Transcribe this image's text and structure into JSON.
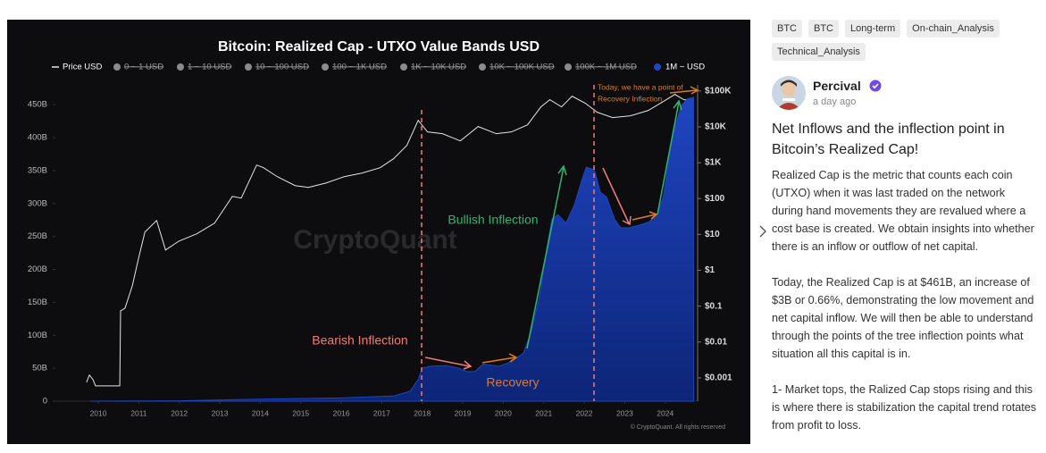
{
  "tags": [
    "BTC",
    "BTC",
    "Long-term",
    "On-chain_Analysis",
    "Technical_Analysis"
  ],
  "author": {
    "name": "Percival",
    "time": "a day ago"
  },
  "post": {
    "title": "Net Inflows and the inflection point in Bitcoin’s Realized Cap!",
    "paragraphs": [
      "Realized Cap is the metric that counts each coin (UTXO) when it was last traded on the network during hand movements they are revalued where a cost base is created. We obtain insights into whether there is an inflow or outflow of net capital.",
      "Today, the Realized Cap is at $461B, an increase of $3B or 0.66%, demonstrating the low movement and net capital inflow. We will then be able to understand through the points of the tree inflection points what situation all this capital is in.",
      "1- Market tops, the Ralized Cap stops rising and this is where there is stabilization the capital trend rotates from profit to loss."
    ]
  },
  "chart_data": {
    "type": "area",
    "title": "Bitcoin: Realized Cap - UTXO Value Bands USD",
    "watermark": "CryptoQuant",
    "credit": "© CryptoQuant. All rights reserved",
    "annotations": [
      "Bearish Inflection",
      "Recovery",
      "Bullish Inflection",
      "Today, we have a point of",
      "Recovery Inflection"
    ],
    "hidden_legend": [
      "0 ~ 1 USD",
      "1 ~ 10 USD",
      "10 ~ 100 USD",
      "100 ~ 1K USD",
      "1K ~ 10K USD",
      "10K ~ 100K USD",
      "100K ~ 1M USD"
    ],
    "xlim": [
      2008.94,
      2024.8
    ],
    "xticks": [
      2010,
      2011,
      2012,
      2013,
      2014,
      2015,
      2016,
      2017,
      2018,
      2019,
      2020,
      2021,
      2022,
      2023,
      2024
    ],
    "ylim": [
      0,
      480
    ],
    "yticks": [
      0,
      {
        "value": 50,
        "label": "50B"
      },
      {
        "value": 100,
        "label": "100B"
      },
      {
        "value": 150,
        "label": "150B"
      },
      {
        "value": 200,
        "label": "200B"
      },
      {
        "value": 250,
        "label": "250B"
      },
      {
        "value": 300,
        "label": "300B"
      },
      {
        "value": 350,
        "label": "350B"
      },
      {
        "value": 400,
        "label": "400B"
      },
      {
        "value": 450,
        "label": "450B"
      }
    ],
    "y2lim": [
      0.000224,
      148000
    ],
    "y2log": true,
    "y2ticks": [
      {
        "value": 0.001,
        "label": "$0.001"
      },
      {
        "value": 0.01,
        "label": "$0.01"
      },
      {
        "value": 0.1,
        "label": "$0.1"
      },
      {
        "value": 1,
        "label": "$1"
      },
      {
        "value": 10,
        "label": "$10"
      },
      {
        "value": 100,
        "label": "$100"
      },
      {
        "value": 1000,
        "label": "$1K"
      },
      {
        "value": 10000,
        "label": "$10K"
      },
      {
        "value": 100000,
        "label": "$100K"
      }
    ],
    "grid": false,
    "series": [
      {
        "name": "Price USD",
        "type": "line",
        "axis": "y2",
        "color": "#e6e6e6",
        "x": [
          2009.71,
          2009.78,
          2009.87,
          2009.93,
          2010.53,
          2010.55,
          2010.66,
          2010.84,
          2010.99,
          2011.15,
          2011.44,
          2011.66,
          2011.99,
          2012.43,
          2012.87,
          2013.31,
          2013.53,
          2013.91,
          2014.08,
          2014.42,
          2014.86,
          2015.19,
          2015.63,
          2016.07,
          2016.51,
          2016.96,
          2017.29,
          2017.62,
          2017.9,
          2018.13,
          2018.5,
          2018.94,
          2019.38,
          2019.83,
          2020.2,
          2020.6,
          2020.93,
          2021.15,
          2021.44,
          2021.7,
          2022.03,
          2022.32,
          2022.7,
          2023.14,
          2023.58,
          2023.95,
          2024.24,
          2024.46,
          2024.71
        ],
        "values": [
          0.00075,
          0.0012,
          0.00089,
          0.0006,
          0.0006,
          0.074,
          0.088,
          0.37,
          2.07,
          11.6,
          24.5,
          3.68,
          6.5,
          10.4,
          20.6,
          115,
          103,
          861,
          725,
          408,
          230,
          205,
          273,
          408,
          514,
          725,
          1288,
          3048,
          15200,
          7210,
          6430,
          4060,
          10200,
          6430,
          7210,
          11400,
          36000,
          57000,
          36000,
          71600,
          45300,
          25500,
          18100,
          20300,
          28600,
          50800,
          80400,
          57000,
          57000
        ]
      },
      {
        "name": "1M ~ USD",
        "type": "area",
        "color": "#1f45c0",
        "x": [
          2009.8,
          2012,
          2014,
          2016,
          2017.3,
          2017.7,
          2017.9,
          2018,
          2018.2,
          2018.6,
          2018.9,
          2019.1,
          2019.3,
          2019.5,
          2019.9,
          2020.2,
          2020.5,
          2020.7,
          2020.9,
          2021.05,
          2021.2,
          2021.35,
          2021.55,
          2021.75,
          2021.95,
          2022.05,
          2022.25,
          2022.4,
          2022.55,
          2022.75,
          2022.9,
          2023.1,
          2023.35,
          2023.6,
          2023.8,
          2023.95,
          2024.1,
          2024.25,
          2024.4,
          2024.55,
          2024.7
        ],
        "values": [
          0,
          0.5,
          3,
          5,
          8,
          15,
          33,
          50,
          53,
          54,
          50,
          45,
          45,
          56,
          53,
          60,
          73,
          107,
          161,
          222,
          276,
          283,
          270,
          297,
          337,
          355,
          351,
          317,
          310,
          276,
          263,
          263,
          267,
          272,
          283,
          310,
          371,
          419,
          449,
          459,
          461
        ]
      }
    ]
  }
}
